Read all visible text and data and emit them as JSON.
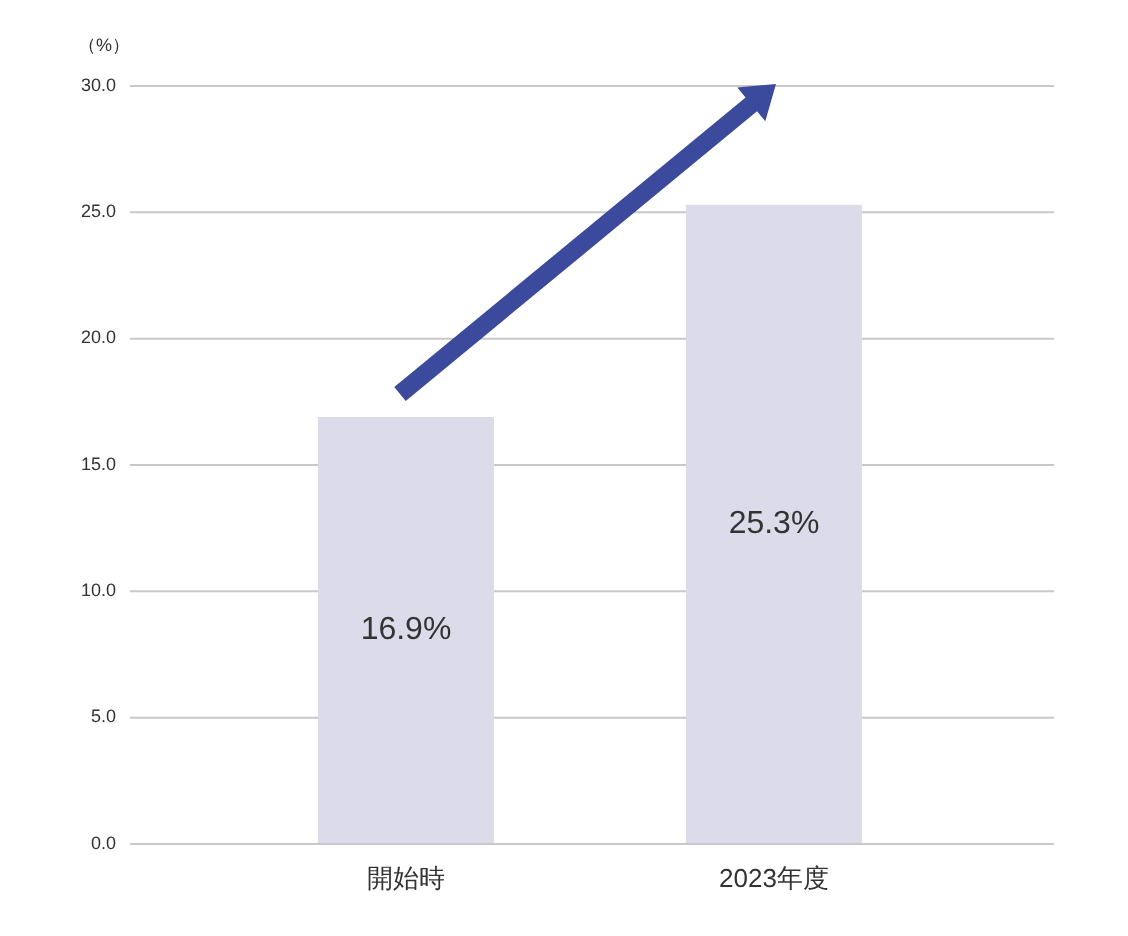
{
  "chart_data": {
    "type": "bar",
    "ylabel": "（%）",
    "categories": [
      "開始時",
      "2023年度"
    ],
    "values": [
      16.9,
      25.3
    ],
    "color": "#dcdbea",
    "value_labels": [
      "16.9%",
      "25.3%"
    ],
    "ylim": [
      0,
      30
    ],
    "yticks": [
      {
        "value": 0,
        "label": "0.0"
      },
      {
        "value": 5,
        "label": "5.0"
      },
      {
        "value": 10,
        "label": "10.0"
      },
      {
        "value": 15,
        "label": "15.0"
      },
      {
        "value": 20,
        "label": "20.0"
      },
      {
        "value": 25,
        "label": "25.0"
      },
      {
        "value": 30,
        "label": "30.0"
      }
    ],
    "grid": "y"
  }
}
